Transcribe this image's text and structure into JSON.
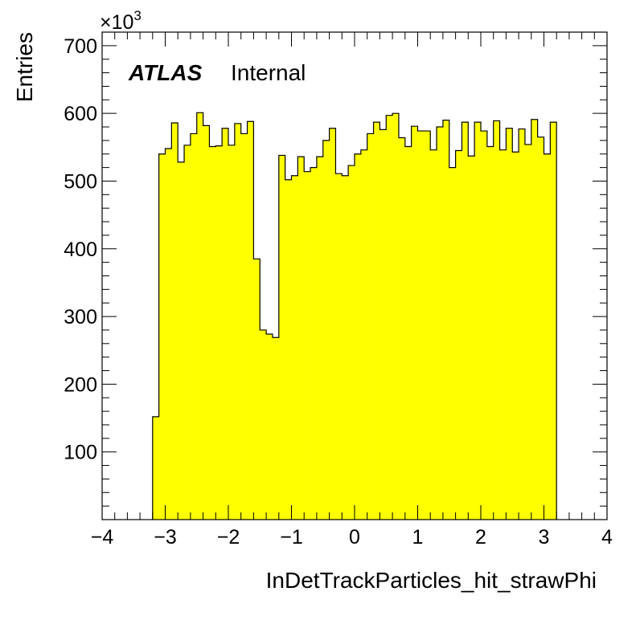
{
  "chart_data": {
    "type": "bar",
    "xlabel": "InDetTrackParticles_hit_strawPhi",
    "ylabel": "Entries",
    "y_multiplier": {
      "base": "×10",
      "exponent": "3"
    },
    "xlim": [
      -4,
      4
    ],
    "ylim": [
      0,
      720
    ],
    "x_ticks": [
      "−4",
      "−3",
      "−2",
      "−1",
      "0",
      "1",
      "2",
      "3",
      "4"
    ],
    "y_ticks": [
      "100",
      "200",
      "300",
      "400",
      "500",
      "600",
      "700"
    ],
    "bin_width": 0.1,
    "bins_x_start": [
      -3.2,
      -3.1,
      -3.0,
      -2.9,
      -2.8,
      -2.7,
      -2.6,
      -2.5,
      -2.4,
      -2.3,
      -2.2,
      -2.1,
      -2.0,
      -1.9,
      -1.8,
      -1.7,
      -1.6,
      -1.5,
      -1.4,
      -1.3,
      -1.2,
      -1.1,
      -1.0,
      -0.9,
      -0.8,
      -0.7,
      -0.6,
      -0.5,
      -0.4,
      -0.3,
      -0.2,
      -0.1,
      0.0,
      0.1,
      0.2,
      0.3,
      0.4,
      0.5,
      0.6,
      0.7,
      0.8,
      0.9,
      1.0,
      1.1,
      1.2,
      1.3,
      1.4,
      1.5,
      1.6,
      1.7,
      1.8,
      1.9,
      2.0,
      2.1,
      2.2,
      2.3,
      2.4,
      2.5,
      2.6,
      2.7,
      2.8,
      2.9,
      3.0,
      3.1
    ],
    "values": [
      152,
      540,
      548,
      586,
      528,
      553,
      570,
      601,
      582,
      551,
      552,
      578,
      553,
      585,
      570,
      588,
      385,
      280,
      274,
      269,
      538,
      502,
      508,
      536,
      514,
      520,
      536,
      560,
      578,
      511,
      508,
      523,
      540,
      546,
      570,
      587,
      576,
      597,
      600,
      564,
      551,
      581,
      574,
      574,
      546,
      580,
      590,
      520,
      545,
      587,
      537,
      587,
      574,
      551,
      589,
      546,
      578,
      543,
      577,
      554,
      591,
      565,
      540,
      587
    ],
    "fill_color": "#ffff00",
    "line_color": "#000000",
    "annotations": [
      {
        "bold_italic": "ATLAS",
        "text": "Internal"
      }
    ]
  }
}
